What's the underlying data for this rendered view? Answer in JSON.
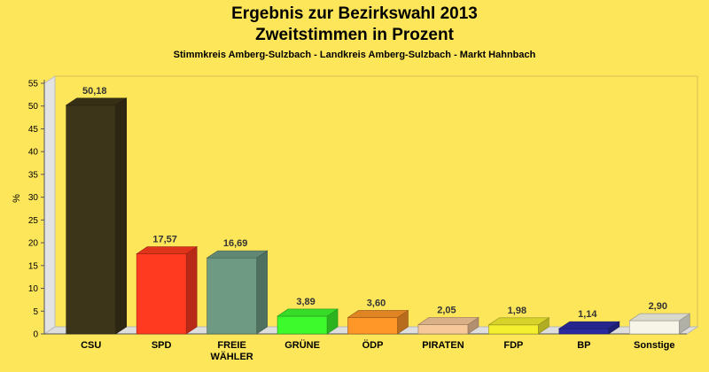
{
  "chart_data": {
    "type": "bar",
    "title": "Ergebnis zur Bezirkswahl 2013",
    "subtitle_line2": "Zweitstimmen in Prozent",
    "subtitle": "Stimmkreis Amberg-Sulzbach - Landkreis Amberg-Sulzbach - Markt Hahnbach",
    "ylabel": "%",
    "ylim": [
      0,
      55
    ],
    "yticks": [
      0,
      5,
      10,
      15,
      20,
      25,
      30,
      35,
      40,
      45,
      50,
      55
    ],
    "grid": false,
    "categories": [
      "CSU",
      "SPD",
      "FREIE WÄHLER",
      "GRÜNE",
      "ÖDP",
      "PIRATEN",
      "FDP",
      "BP",
      "Sonstige"
    ],
    "category_lines": [
      [
        "CSU"
      ],
      [
        "SPD"
      ],
      [
        "FREIE",
        "WÄHLER"
      ],
      [
        "GRÜNE"
      ],
      [
        "ÖDP"
      ],
      [
        "PIRATEN"
      ],
      [
        "FDP"
      ],
      [
        "BP"
      ],
      [
        "Sonstige"
      ]
    ],
    "values": [
      50.18,
      17.57,
      16.69,
      3.89,
      3.6,
      2.05,
      1.98,
      1.14,
      2.9
    ],
    "value_labels": [
      "50,18",
      "17,57",
      "16,69",
      "3,89",
      "3,60",
      "2,05",
      "1,98",
      "1,14",
      "2,90"
    ],
    "colors": [
      "#3d3519",
      "#ff3a20",
      "#6e9a84",
      "#3dfa2c",
      "#ff9628",
      "#f7c89a",
      "#f4f030",
      "#2a2aa0",
      "#f6f5e8"
    ]
  }
}
